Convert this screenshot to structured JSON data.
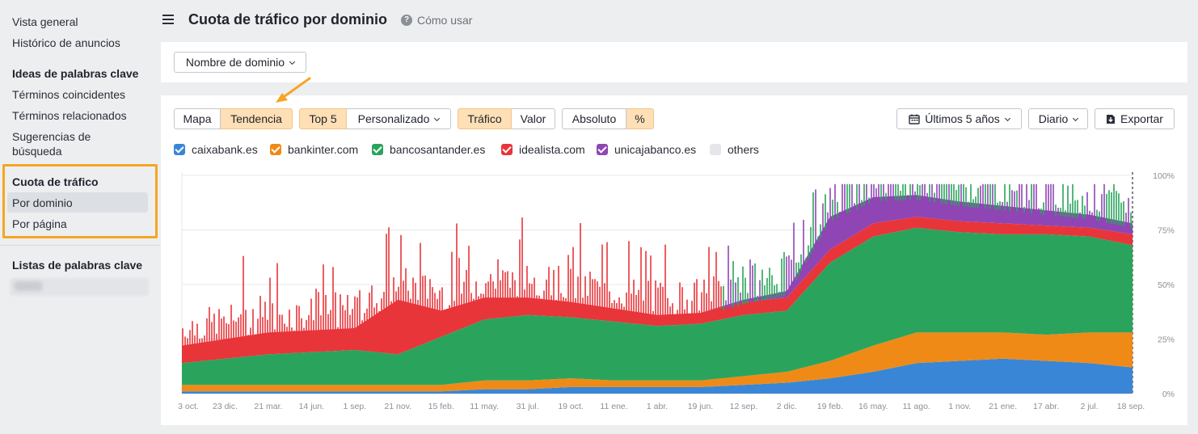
{
  "sidebar": {
    "items": [
      {
        "label": "Vista general",
        "type": "item"
      },
      {
        "label": "Histórico de anuncios",
        "type": "item"
      },
      {
        "label": "Ideas de palabras clave",
        "type": "head"
      },
      {
        "label": "Términos coincidentes",
        "type": "item"
      },
      {
        "label": "Términos relacionados",
        "type": "item"
      },
      {
        "label": "Sugerencias de",
        "type": "item"
      },
      {
        "label": "búsqueda",
        "type": "item"
      },
      {
        "label": "Cuota de tráfico",
        "type": "head"
      },
      {
        "label": "Por dominio",
        "type": "item",
        "active": true
      },
      {
        "label": "Por página",
        "type": "item"
      },
      {
        "label": "Listas de palabras clave",
        "type": "head"
      }
    ]
  },
  "header": {
    "title": "Cuota de tráfico por dominio",
    "help_label": "Cómo usar"
  },
  "filter": {
    "dropdown_label": "Nombre de dominio"
  },
  "toolbar": {
    "view_tabs": [
      "Mapa",
      "Tendencia"
    ],
    "view_selected": "Tendencia",
    "top_label": "Top 5",
    "custom_label": "Personalizado",
    "metric_tabs": [
      "Tráfico",
      "Valor"
    ],
    "metric_selected": "Tráfico",
    "scale_tabs": [
      "Absoluto",
      "%"
    ],
    "scale_selected": "%",
    "period_label": "Últimos 5 años",
    "granularity_label": "Diario",
    "export_label": "Exportar"
  },
  "legend": [
    {
      "name": "caixabank.es",
      "color": "#3a86d6",
      "checked": true
    },
    {
      "name": "bankinter.com",
      "color": "#f08a16",
      "checked": true
    },
    {
      "name": "bancosantander.es",
      "color": "#2aa45c",
      "checked": true
    },
    {
      "name": "idealista.com",
      "color": "#e8353a",
      "checked": true
    },
    {
      "name": "unicajabanco.es",
      "color": "#8f46b4",
      "checked": true
    },
    {
      "name": "others",
      "color": "#e4e6ea",
      "checked": false
    }
  ],
  "chart_data": {
    "type": "area",
    "stacked": true,
    "x_ticks": [
      "3 oct.",
      "23 dic.",
      "21 mar.",
      "14 jun.",
      "1 sep.",
      "21 nov.",
      "15 feb.",
      "11 may.",
      "31 jul.",
      "19 oct.",
      "11 ene.",
      "1 abr.",
      "19 jun.",
      "12 sep.",
      "2 dic.",
      "19 feb.",
      "16 may.",
      "11 ago.",
      "1 nov.",
      "21 ene.",
      "17 abr.",
      "2 jul.",
      "18 sep."
    ],
    "y_ticks": [
      "100%",
      "75%",
      "50%",
      "25%",
      "0%"
    ],
    "ylim": [
      0,
      100
    ],
    "grid": true,
    "series": [
      {
        "name": "caixabank.es",
        "values": [
          1,
          1,
          1,
          1,
          1,
          1,
          1,
          2,
          2,
          3,
          3,
          3,
          3,
          4,
          5,
          7,
          10,
          14,
          15,
          16,
          15,
          14,
          12
        ]
      },
      {
        "name": "bankinter.com",
        "values": [
          3,
          3,
          3,
          3,
          3,
          3,
          3,
          4,
          4,
          4,
          3,
          3,
          3,
          4,
          5,
          8,
          12,
          14,
          13,
          12,
          12,
          14,
          16
        ]
      },
      {
        "name": "bancosantander.es",
        "values": [
          10,
          12,
          14,
          15,
          16,
          14,
          22,
          28,
          30,
          28,
          27,
          25,
          26,
          28,
          28,
          45,
          50,
          48,
          46,
          45,
          46,
          44,
          40
        ]
      },
      {
        "name": "idealista.com",
        "values": [
          8,
          9,
          10,
          10,
          10,
          25,
          12,
          10,
          8,
          7,
          6,
          5,
          5,
          6,
          6,
          6,
          6,
          5,
          5,
          5,
          4,
          4,
          5
        ]
      },
      {
        "name": "unicajabanco.es",
        "values": [
          0,
          0,
          0,
          0,
          0,
          0,
          0,
          0,
          0,
          0,
          0,
          0,
          0,
          1,
          3,
          15,
          12,
          10,
          9,
          8,
          7,
          6,
          5
        ]
      }
    ]
  }
}
